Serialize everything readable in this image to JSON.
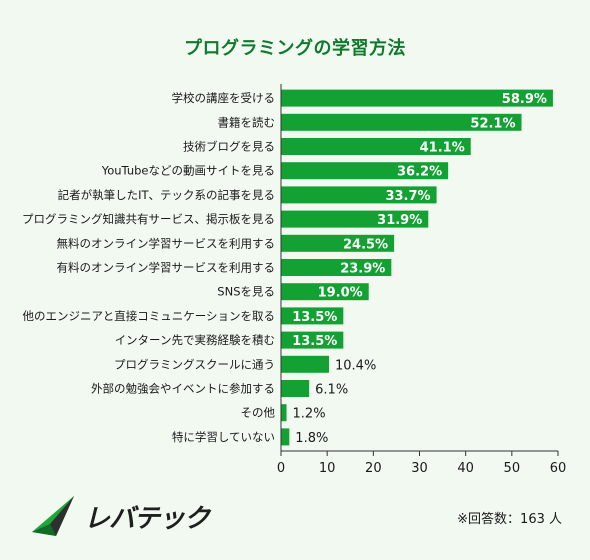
{
  "chart_data": {
    "type": "bar",
    "orientation": "horizontal",
    "title": "プログラミングの学習方法",
    "categories": [
      "学校の講座を受ける",
      "書籍を読む",
      "技術ブログを見る",
      "YouTubeなどの動画サイトを見る",
      "記者が執筆したIT、テック系の記事を見る",
      "プログラミング知識共有サービス、掲示板を見る",
      "無料のオンライン学習サービスを利用する",
      "有料のオンライン学習サービスを利用する",
      "SNSを見る",
      "他のエンジニアと直接コミュニケーションを取る",
      "インターン先で実務経験を積む",
      "プログラミングスクールに通う",
      "外部の勉強会やイベントに参加する",
      "その他",
      "特に学習していない"
    ],
    "values": [
      58.9,
      52.1,
      41.1,
      36.2,
      33.7,
      31.9,
      24.5,
      23.9,
      19.0,
      13.5,
      13.5,
      10.4,
      6.1,
      1.2,
      1.8
    ],
    "value_labels": [
      "58.9%",
      "52.1%",
      "41.1%",
      "36.2%",
      "33.7%",
      "31.9%",
      "24.5%",
      "23.9%",
      "19.0%",
      "13.5%",
      "13.5%",
      "10.4%",
      "6.1%",
      "1.2%",
      "1.8%"
    ],
    "xlim": [
      0,
      60
    ],
    "xticks": [
      0,
      10,
      20,
      30,
      40,
      50,
      60
    ],
    "bar_color": "#14a133",
    "title_color": "#0f7a2e"
  },
  "footer": {
    "note": "※回答数：163 人",
    "logo_text": "レバテック"
  }
}
